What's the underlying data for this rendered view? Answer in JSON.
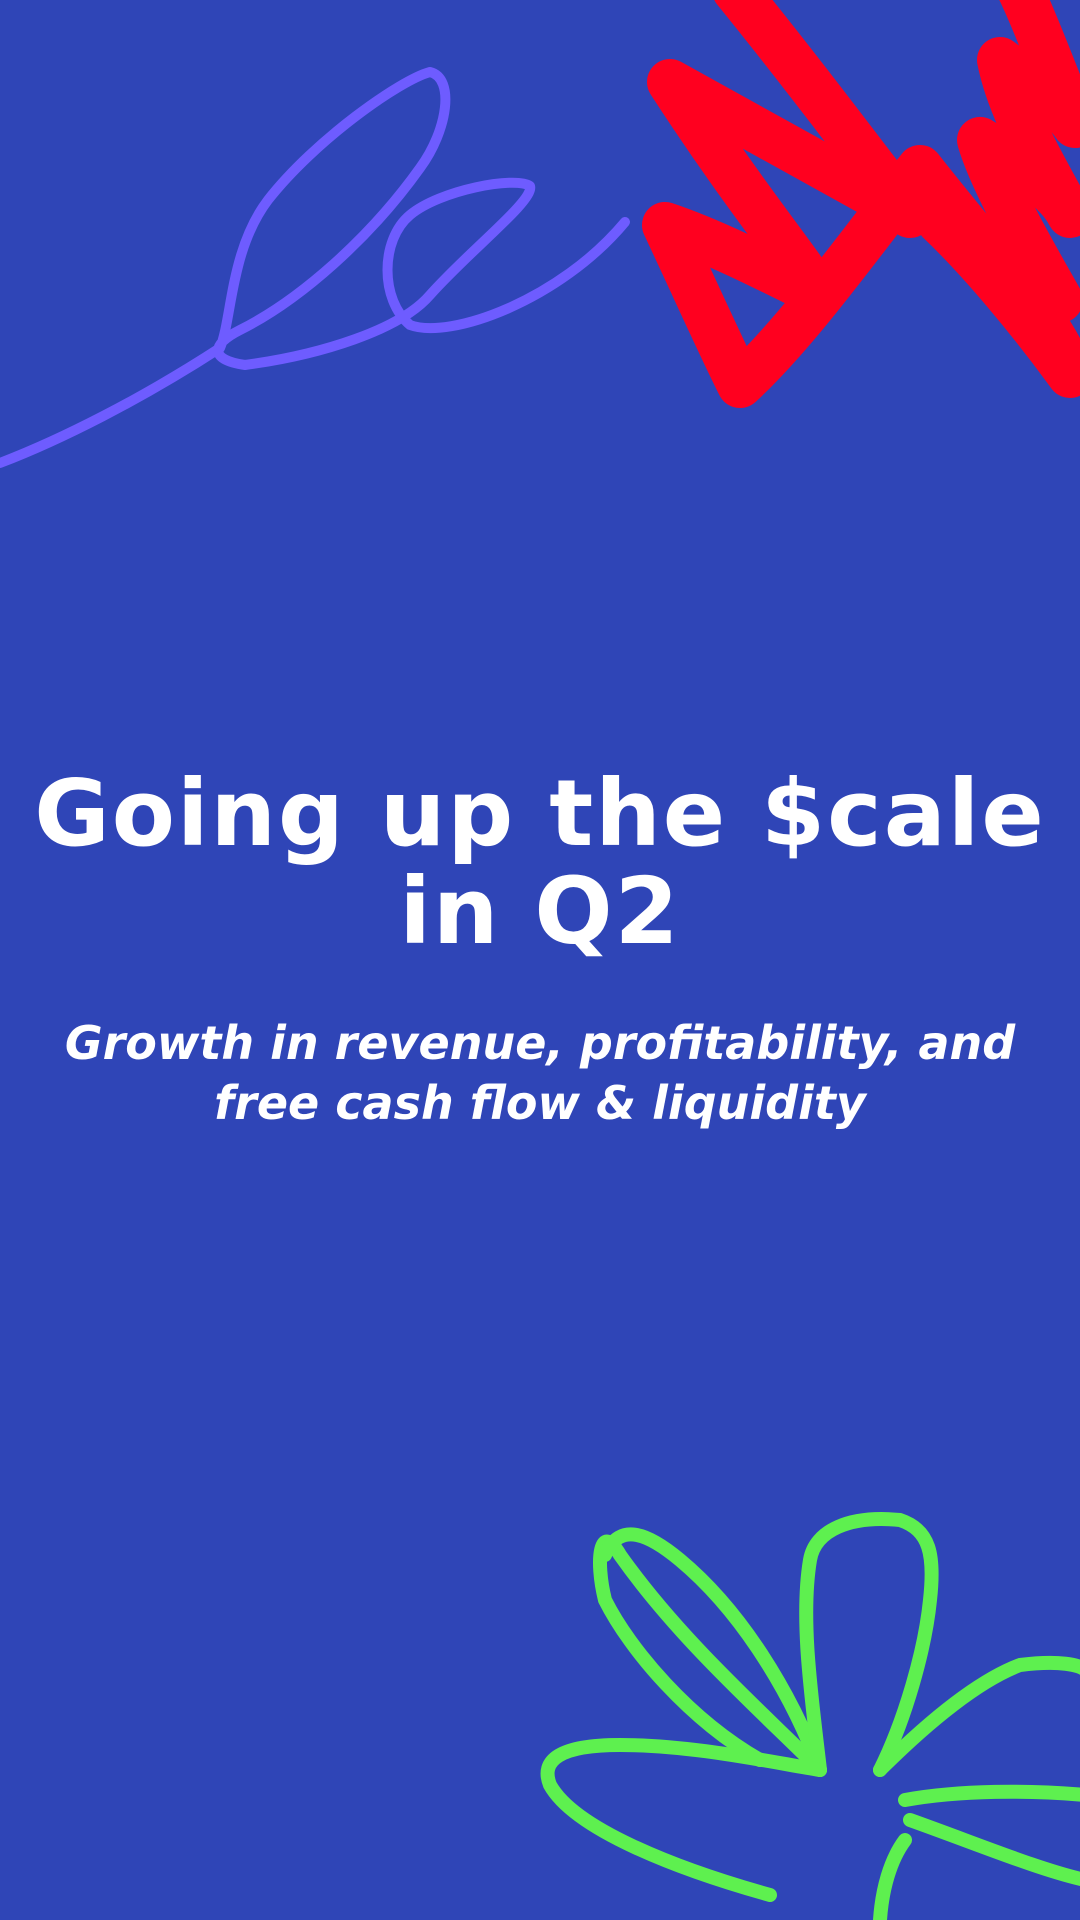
{
  "colors": {
    "background": "#2f45b7",
    "text": "#ffffff",
    "scribble_red": "#ff001f",
    "scribble_purple": "#6e5cff",
    "flower_green": "#5ef04f"
  },
  "headline": {
    "line1": "Going up the $cale",
    "line2": "in Q2"
  },
  "subheadline": {
    "line1": "Growth in revenue, profitability, and",
    "line2": "free cash flow & liquidity"
  },
  "decorations": {
    "top_left": "purple-loop-scribble",
    "top_right": "red-zigzag-scribble",
    "bottom_right": "green-flower-outline"
  }
}
